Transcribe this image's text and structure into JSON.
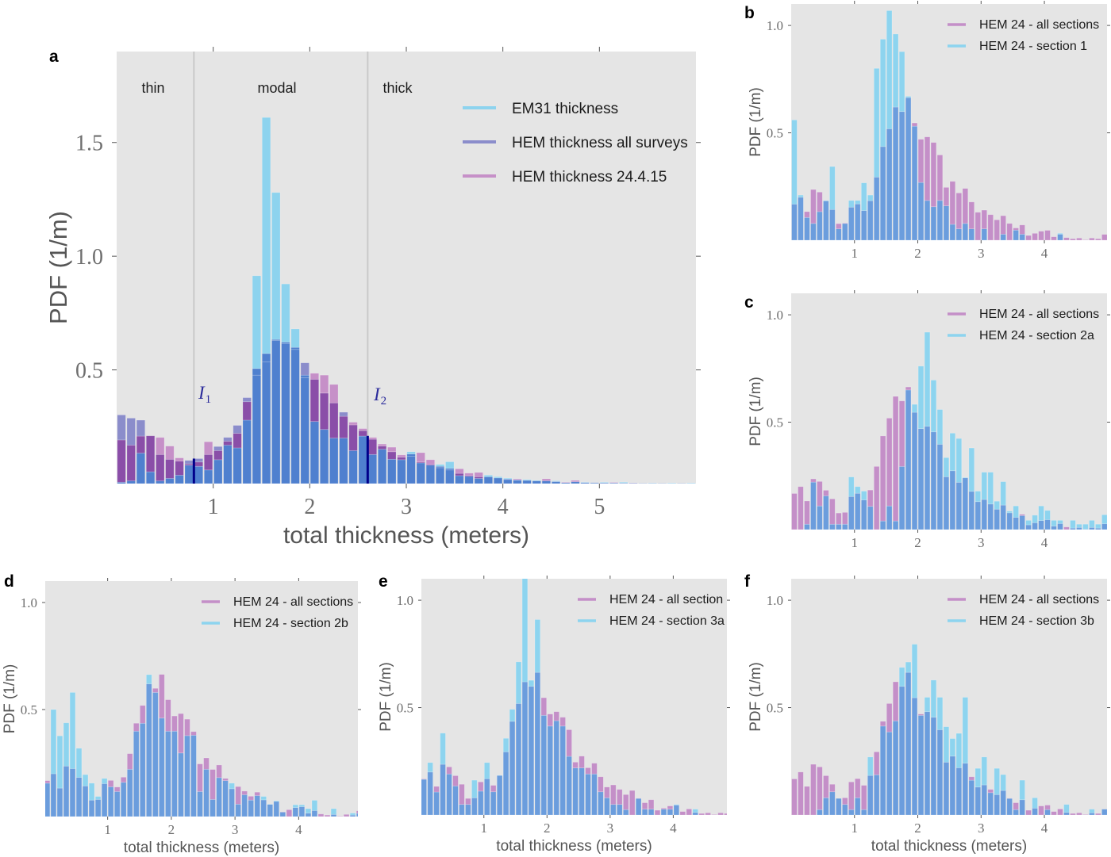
{
  "figure": {
    "panel_count": 6
  },
  "chart_data": [
    {
      "panel_label": "a",
      "type": "bar",
      "title": "",
      "xlabel": "total thickness (meters)",
      "ylabel": "PDF (1/m)",
      "xlim": [
        0,
        6.0
      ],
      "ylim": [
        0,
        1.9
      ],
      "xticks": [
        1,
        2,
        3,
        4,
        5
      ],
      "xtick_labels": [
        "1",
        "2",
        "3",
        "4",
        "5"
      ],
      "yticks": [
        0.5,
        1.0,
        1.5
      ],
      "ytick_labels": [
        "0.5",
        "1.0",
        "1.5"
      ],
      "grid": false,
      "background": "#e5e5e5",
      "bin_start": 0,
      "bin_width": 0.1,
      "legend": {
        "position": "upper-right"
      },
      "regions": [
        "thin",
        "modal",
        "thick"
      ],
      "region_line_color": "#c9c9c9",
      "threshold_color": "#00008b",
      "thresholds": [
        {
          "name": "I",
          "sub": "1",
          "x": 0.8,
          "pdf": 0.11
        },
        {
          "name": "I",
          "sub": "2",
          "x": 2.6,
          "pdf": 0.21
        }
      ],
      "series": [
        {
          "key": "E",
          "name": "EM31 thickness",
          "color": "#8dd3ee",
          "values": [
            0.006,
            0.012,
            0.134,
            0.052,
            0.012,
            0.023,
            0.037,
            0.081,
            0.076,
            0.06,
            0.105,
            0.169,
            0.157,
            0.279,
            0.914,
            1.61,
            1.28,
            0.878,
            0.68,
            0.477,
            0.273,
            0.238,
            0.2,
            0.2,
            0.145,
            0.209,
            0.128,
            0.151,
            0.107,
            0.105,
            0.14,
            0.091,
            0.081,
            0.084,
            0.096,
            0.035,
            0.032,
            0.023,
            0.037,
            0.03,
            0.024,
            0.017,
            0.018,
            0.014,
            0.012,
            0.012,
            0.004,
            0.008,
            0.006,
            0.004,
            0.006,
            0.003,
            0.006,
            0.002,
            0.001,
            0.003,
            0.001,
            0.003,
            0.001,
            0.003
          ]
        },
        {
          "key": "A",
          "name": "HEM thickness all surveys",
          "color": "#8b8dcb",
          "values": [
            0.302,
            0.288,
            0.279,
            0.21,
            0.128,
            0.107,
            0.099,
            0.102,
            0.11,
            0.128,
            0.163,
            0.203,
            0.256,
            0.378,
            0.506,
            0.572,
            0.634,
            0.622,
            0.599,
            0.531,
            0.459,
            0.398,
            0.355,
            0.314,
            0.258,
            0.233,
            0.195,
            0.165,
            0.14,
            0.116,
            0.13,
            0.095,
            0.085,
            0.076,
            0.067,
            0.045,
            0.036,
            0.03,
            0.03,
            0.025,
            0.018,
            0.015,
            0.014,
            0.012,
            0.012,
            0.01,
            0.005,
            0.008,
            0.005,
            0.004,
            0.004,
            0.003,
            0.003,
            0.002,
            0.001,
            0.002,
            0.001,
            0.001,
            0.001,
            0.001
          ]
        },
        {
          "key": "P",
          "name": "HEM thickness 24.4.15",
          "color": "#c690c8",
          "values": [
            0.192,
            0.169,
            0.209,
            0.21,
            0.203,
            0.165,
            0.113,
            0.087,
            0.095,
            0.184,
            0.145,
            0.186,
            0.221,
            0.36,
            0.477,
            0.535,
            0.63,
            0.615,
            0.59,
            0.465,
            0.485,
            0.477,
            0.436,
            0.296,
            0.27,
            0.242,
            0.203,
            0.174,
            0.16,
            0.126,
            0.12,
            0.136,
            0.105,
            0.07,
            0.06,
            0.065,
            0.046,
            0.049,
            0.03,
            0.025,
            0.021,
            0.021,
            0.015,
            0.012,
            0.021,
            0.008,
            0.006,
            0.014,
            0.004,
            0.003,
            0.003,
            0.005,
            0.002,
            0.003,
            0,
            0.001,
            0,
            0.001,
            0,
            0.001
          ]
        }
      ],
      "overlap_colors": {
        "A+E": "#4f80cf",
        "A+P": "#8a4ea8",
        "E+P": "#6d9ade",
        "A+E+P": "#4f80cf"
      }
    },
    {
      "panel_label": "b",
      "type": "bar",
      "title": "",
      "ylabel": "PDF (1/m)",
      "xlim": [
        0,
        4.99
      ],
      "ylim": [
        0,
        1.1
      ],
      "xticks": [
        1,
        2,
        3,
        4
      ],
      "xtick_labels": [
        "1",
        "2",
        "3",
        "4"
      ],
      "yticks": [
        0.5,
        1.0
      ],
      "ytick_labels": [
        "0.5",
        "1.0"
      ],
      "grid": false,
      "background": "#e5e5e5",
      "bin_start": 0,
      "bin_width": 0.1,
      "legend": {
        "position": "upper-right"
      },
      "series": [
        {
          "key": "P",
          "name": "HEM 24 - all sections",
          "color": "#c48fc8",
          "values": [
            0.168,
            0.2,
            0.133,
            0.236,
            0.224,
            0.183,
            0.143,
            0.077,
            0.08,
            0.154,
            0.169,
            0.138,
            0.184,
            0.294,
            0.436,
            0.519,
            0.62,
            0.599,
            0.664,
            0.546,
            0.47,
            0.481,
            0.455,
            0.397,
            0.246,
            0.274,
            0.22,
            0.241,
            0.178,
            0.13,
            0.14,
            0.119,
            0.095,
            0.114,
            0.078,
            0.057,
            0.071,
            0.022,
            0.032,
            0.042,
            0.046,
            0.016,
            0.028,
            0.012,
            0.007,
            0.01,
            0.002,
            0.01,
            0.007,
            0.027
          ]
        },
        {
          "key": "S",
          "name": "HEM 24 - section 1",
          "color": "#8dd4ef",
          "values": [
            0.56,
            0.21,
            0.106,
            0.078,
            0.133,
            0.185,
            0.343,
            0.053,
            0.078,
            0.185,
            0.185,
            0.267,
            0.21,
            0.8,
            0.936,
            1.069,
            0.96,
            0.878,
            0.67,
            0.531,
            0.269,
            0.185,
            0.156,
            0.185,
            0.16,
            0.074,
            0.053,
            0.078,
            0.053,
            0,
            0.053,
            0,
            0,
            0.028,
            0,
            0.047,
            0.028,
            0,
            0,
            0,
            0,
            0,
            0.032,
            0,
            0,
            0,
            0,
            0,
            0,
            0
          ]
        }
      ],
      "overlap_colors": {
        "P+S": "#6b9ddd"
      }
    },
    {
      "panel_label": "c",
      "type": "bar",
      "title": "",
      "ylabel": "PDF (1/m)",
      "xlim": [
        0,
        4.99
      ],
      "ylim": [
        0,
        1.1
      ],
      "xticks": [
        1,
        2,
        3,
        4
      ],
      "xtick_labels": [
        "1",
        "2",
        "3",
        "4"
      ],
      "yticks": [
        0.5,
        1.0
      ],
      "ytick_labels": [
        "0.5",
        "1.0"
      ],
      "grid": false,
      "background": "#e5e5e5",
      "bin_start": 0,
      "bin_width": 0.1,
      "legend": {
        "position": "upper-right"
      },
      "series": [
        {
          "key": "P",
          "name": "HEM 24 - all sections",
          "color": "#c48fc8",
          "values": [
            0.168,
            0.2,
            0.133,
            0.236,
            0.224,
            0.183,
            0.143,
            0.077,
            0.08,
            0.154,
            0.169,
            0.138,
            0.184,
            0.294,
            0.436,
            0.519,
            0.62,
            0.599,
            0.664,
            0.546,
            0.47,
            0.481,
            0.455,
            0.397,
            0.246,
            0.274,
            0.22,
            0.241,
            0.178,
            0.13,
            0.14,
            0.119,
            0.095,
            0.114,
            0.078,
            0.057,
            0.071,
            0.022,
            0.032,
            0.042,
            0.046,
            0.016,
            0.028,
            0.012,
            0.007,
            0.01,
            0.002,
            0.01,
            0.007,
            0.027
          ]
        },
        {
          "key": "S",
          "name": "HEM 24 - section 2a",
          "color": "#8dd4ef",
          "values": [
            0,
            0,
            0.025,
            0.221,
            0.11,
            0.157,
            0.025,
            0.025,
            0.025,
            0.245,
            0.2,
            0.179,
            0.108,
            0,
            0.04,
            0.11,
            0.04,
            0.294,
            0.65,
            0.583,
            0.761,
            0.919,
            0.696,
            0.559,
            0.335,
            0.449,
            0.424,
            0.243,
            0.38,
            0.179,
            0.267,
            0.267,
            0.132,
            0.223,
            0.086,
            0.11,
            0.065,
            0.043,
            0.067,
            0.11,
            0.089,
            0.043,
            0.043,
            0,
            0.043,
            0.025,
            0.025,
            0.043,
            0.025,
            0.069
          ]
        }
      ],
      "overlap_colors": {
        "P+S": "#6b9ddd"
      }
    },
    {
      "panel_label": "d",
      "type": "bar",
      "title": "",
      "xlabel": "total thickness (meters)",
      "ylabel": "PDF (1/m)",
      "xlim": [
        0.02,
        4.93
      ],
      "ylim": [
        0,
        1.1
      ],
      "xticks": [
        1,
        2,
        3,
        4
      ],
      "xtick_labels": [
        "1",
        "2",
        "3",
        "4"
      ],
      "yticks": [
        0.5,
        1.0
      ],
      "ytick_labels": [
        "0.5",
        "1.0"
      ],
      "grid": false,
      "background": "#e5e5e5",
      "bin_start": 0,
      "bin_width": 0.1,
      "legend": {
        "position": "upper-right"
      },
      "series": [
        {
          "key": "P",
          "name": "HEM 24 - all sections",
          "color": "#c48fc8",
          "values": [
            0.168,
            0.2,
            0.133,
            0.236,
            0.224,
            0.183,
            0.143,
            0.077,
            0.08,
            0.154,
            0.169,
            0.138,
            0.184,
            0.294,
            0.436,
            0.519,
            0.62,
            0.599,
            0.664,
            0.546,
            0.47,
            0.481,
            0.455,
            0.397,
            0.246,
            0.274,
            0.22,
            0.241,
            0.178,
            0.13,
            0.14,
            0.119,
            0.095,
            0.114,
            0.078,
            0.057,
            0.071,
            0.022,
            0.032,
            0.042,
            0.046,
            0.016,
            0.028,
            0.012,
            0.007,
            0.01,
            0.002,
            0.01,
            0.007,
            0.027
          ]
        },
        {
          "key": "S",
          "name": "HEM 24 - section 2b",
          "color": "#8dd4ef",
          "values": [
            0.156,
            0.5,
            0.377,
            0.438,
            0.58,
            0.319,
            0.196,
            0.156,
            0.094,
            0.178,
            0.139,
            0.117,
            0.16,
            0.221,
            0.399,
            0.436,
            0.663,
            0.58,
            0.46,
            0.399,
            0.399,
            0.297,
            0.378,
            0.38,
            0.117,
            0.221,
            0.08,
            0.182,
            0.168,
            0.156,
            0.058,
            0.102,
            0.077,
            0.098,
            0.094,
            0.058,
            0.074,
            0.021,
            0,
            0.055,
            0.055,
            0.037,
            0.076,
            0,
            0,
            0.037,
            0,
            0,
            0.016,
            0.015
          ]
        }
      ],
      "overlap_colors": {
        "P+S": "#6b9ddd"
      }
    },
    {
      "panel_label": "e",
      "type": "bar",
      "title": "",
      "xlabel": "total thickness (meters)",
      "ylabel": "PDF (1/m)",
      "xlim": [
        0.01,
        4.85
      ],
      "ylim": [
        0,
        1.1
      ],
      "xticks": [
        1,
        2,
        3,
        4
      ],
      "xtick_labels": [
        "1",
        "2",
        "3",
        "4"
      ],
      "yticks": [
        0.5,
        1.0
      ],
      "ytick_labels": [
        "0.5",
        "1.0"
      ],
      "grid": false,
      "background": "#e5e5e5",
      "bin_start": 0,
      "bin_width": 0.1,
      "legend": {
        "position": "upper-right"
      },
      "series": [
        {
          "key": "P",
          "name": "HEM 24 - all section",
          "color": "#c48fc8",
          "values": [
            0.168,
            0.2,
            0.133,
            0.236,
            0.224,
            0.183,
            0.143,
            0.077,
            0.08,
            0.154,
            0.169,
            0.138,
            0.184,
            0.294,
            0.436,
            0.519,
            0.62,
            0.599,
            0.664,
            0.546,
            0.47,
            0.481,
            0.455,
            0.397,
            0.246,
            0.274,
            0.22,
            0.241,
            0.178,
            0.13,
            0.14,
            0.119,
            0.095,
            0.114,
            0.078,
            0.057,
            0.071,
            0.022,
            0.032,
            0.042,
            0.046,
            0.016,
            0.028,
            0.012,
            0.007,
            0.01,
            0.002,
            0.01,
            0.007,
            0.027
          ]
        },
        {
          "key": "S",
          "name": "HEM 24 - section 3a",
          "color": "#8dd4ef",
          "values": [
            0.166,
            0.244,
            0.107,
            0.381,
            0.191,
            0.135,
            0.049,
            0.049,
            0.162,
            0.111,
            0.244,
            0.108,
            0.185,
            0.357,
            0.492,
            0.713,
            1.12,
            0.627,
            0.91,
            0.464,
            0.414,
            0.439,
            0.414,
            0.273,
            0.219,
            0.219,
            0.191,
            0.191,
            0.108,
            0.08,
            0.049,
            0.049,
            0.025,
            0,
            0.077,
            0.027,
            0.027,
            0,
            0.027,
            0.027,
            0.049,
            0,
            0,
            0.027,
            0,
            0,
            0,
            0,
            0,
            0
          ]
        }
      ],
      "overlap_colors": {
        "P+S": "#6b9ddd"
      }
    },
    {
      "panel_label": "f",
      "type": "bar",
      "title": "",
      "xlabel": "total thickness (meters)",
      "ylabel": "PDF (1/m)",
      "xlim": [
        0,
        4.99
      ],
      "ylim": [
        0,
        1.1
      ],
      "xticks": [
        1,
        2,
        3,
        4
      ],
      "xtick_labels": [
        "1",
        "2",
        "3",
        "4"
      ],
      "yticks": [
        0.5,
        1.0
      ],
      "ytick_labels": [
        "0.5",
        "1.0"
      ],
      "grid": false,
      "background": "#e5e5e5",
      "bin_start": 0,
      "bin_width": 0.1,
      "legend": {
        "position": "upper-right"
      },
      "series": [
        {
          "key": "P",
          "name": "HEM 24 - all sections",
          "color": "#c48fc8",
          "values": [
            0.168,
            0.2,
            0.133,
            0.236,
            0.224,
            0.183,
            0.143,
            0.077,
            0.08,
            0.154,
            0.169,
            0.138,
            0.184,
            0.294,
            0.436,
            0.519,
            0.62,
            0.599,
            0.664,
            0.546,
            0.47,
            0.481,
            0.455,
            0.397,
            0.246,
            0.274,
            0.22,
            0.241,
            0.178,
            0.13,
            0.14,
            0.119,
            0.095,
            0.114,
            0.078,
            0.057,
            0.071,
            0.022,
            0.032,
            0.042,
            0.046,
            0.016,
            0.028,
            0.012,
            0.007,
            0.01,
            0.002,
            0.01,
            0.007,
            0.027
          ]
        },
        {
          "key": "S",
          "name": "HEM 24 - section 3b",
          "color": "#8dd4ef",
          "values": [
            0,
            0,
            0,
            0,
            0.025,
            0.08,
            0.108,
            0.077,
            0.049,
            0.025,
            0.08,
            0.025,
            0.27,
            0.187,
            0.414,
            0.387,
            0.438,
            0.687,
            0.712,
            0.795,
            0.464,
            0.548,
            0.628,
            0.548,
            0.411,
            0.356,
            0.38,
            0.548,
            0.162,
            0.217,
            0.27,
            0.104,
            0.217,
            0.188,
            0.077,
            0.025,
            0.162,
            0,
            0.08,
            0,
            0.025,
            0,
            0,
            0.049,
            0,
            0,
            0,
            0.027,
            0,
            0.027
          ]
        }
      ],
      "overlap_colors": {
        "P+S": "#6b9ddd"
      }
    }
  ]
}
